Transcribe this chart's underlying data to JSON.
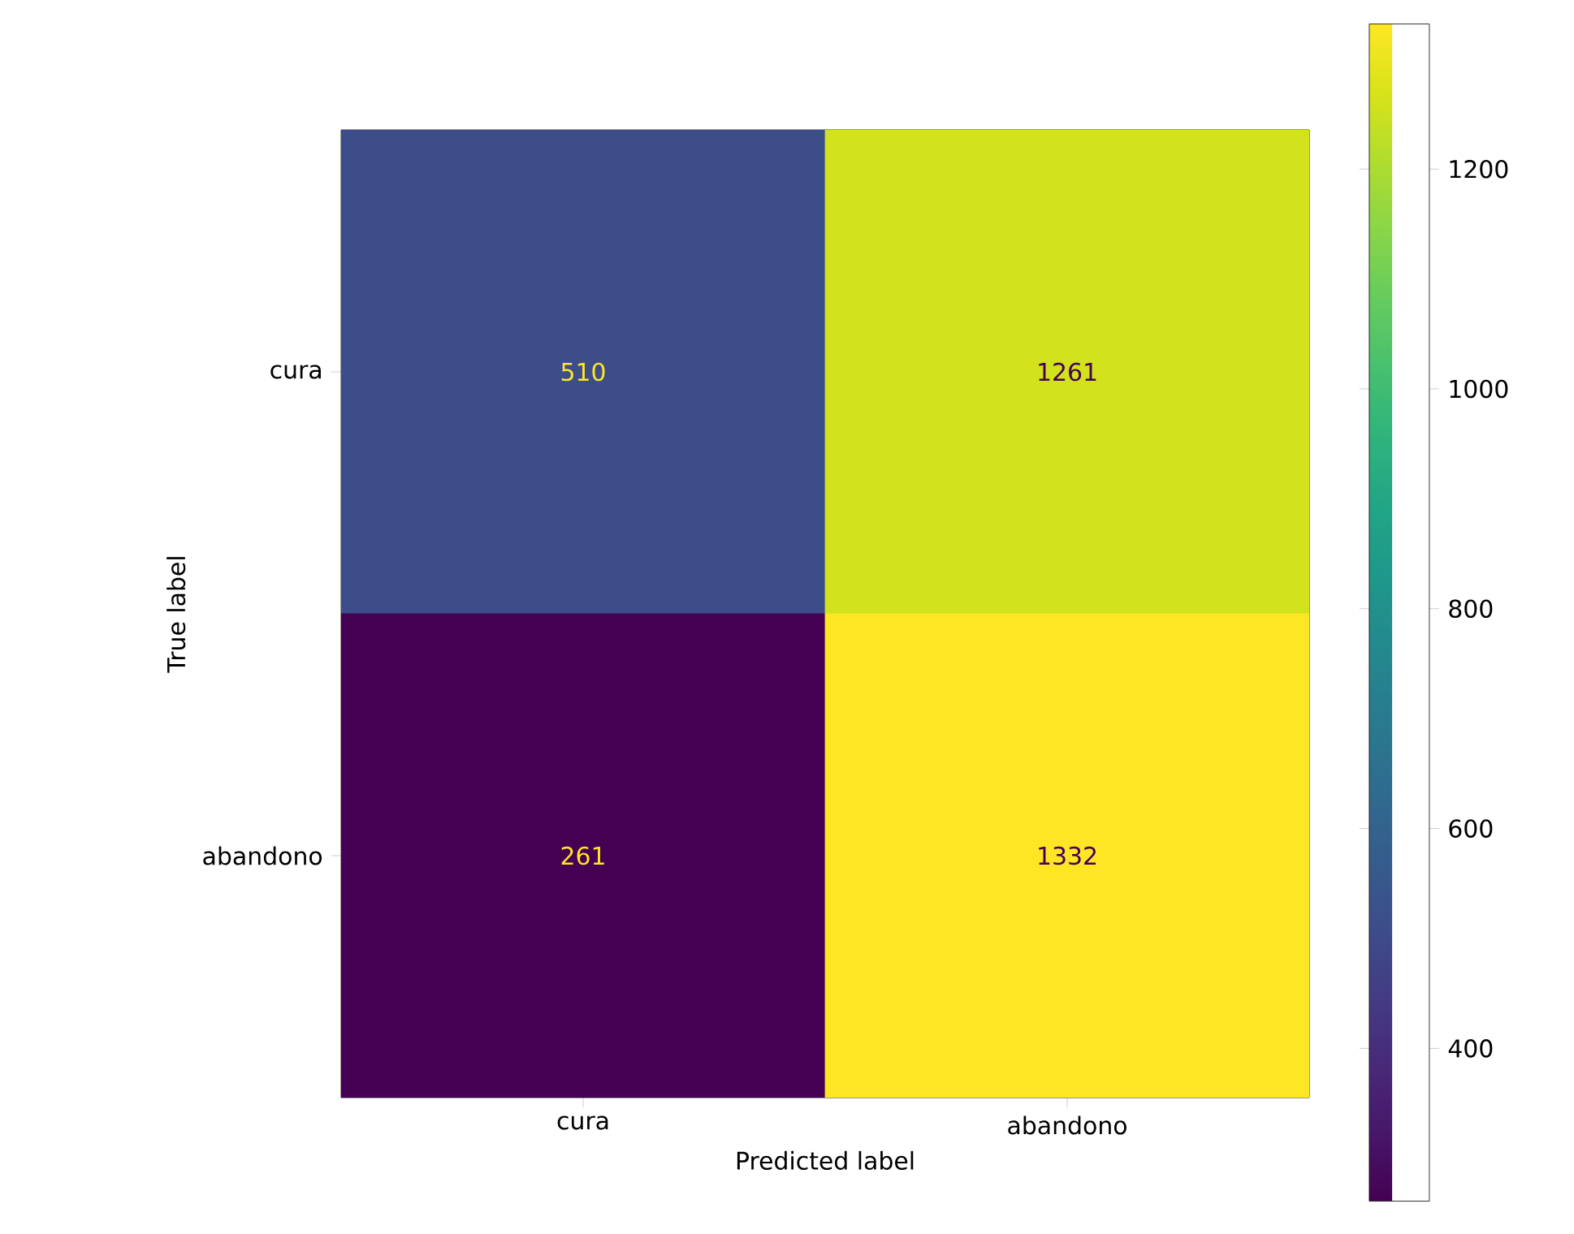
{
  "chart_data": {
    "type": "heatmap",
    "xlabel": "Predicted label",
    "ylabel": "True label",
    "categories": [
      "cura",
      "abandono"
    ],
    "y_categories": [
      "cura",
      "abandono"
    ],
    "cells": [
      [
        510,
        1261
      ],
      [
        261,
        1332
      ]
    ],
    "data_labels": true,
    "clim": [
      261,
      1332
    ],
    "cticks": [
      400,
      600,
      800,
      1000,
      1200
    ]
  }
}
